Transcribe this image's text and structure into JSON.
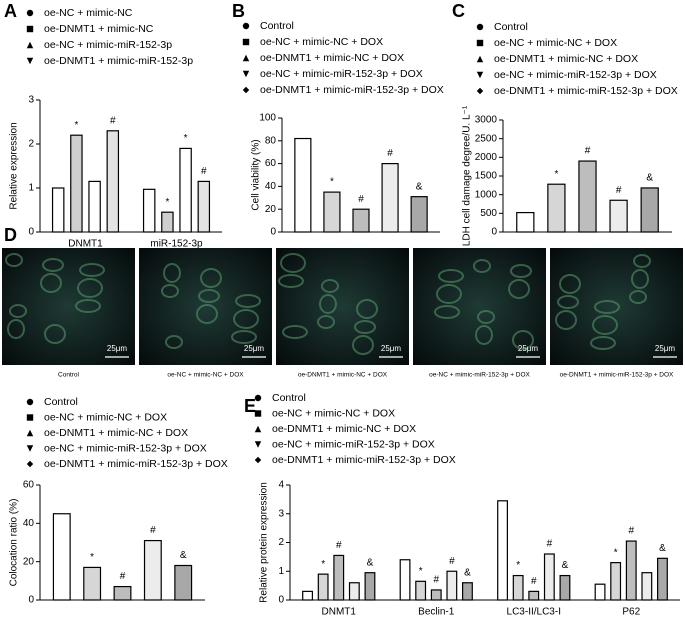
{
  "chart_data": [
    {
      "type": "bar",
      "panel": "A",
      "ylabel": "Relative expression",
      "categories": [
        "DNMT1",
        "miR-152-3p"
      ],
      "ylim": [
        0,
        3
      ],
      "yticks": [
        0,
        1,
        2,
        3
      ],
      "series": [
        {
          "name": "oe-NC + mimic-NC",
          "color": "#ffffff",
          "values": [
            1.0,
            0.97
          ],
          "sig": [
            null,
            null
          ]
        },
        {
          "name": "oe-DNMT1 + mimic-NC",
          "color": "#cfcfcf",
          "values": [
            2.2,
            0.45
          ],
          "sig": [
            "*",
            "*"
          ]
        },
        {
          "name": "oe-NC + mimic-miR-152-3p",
          "color": "#ffffff",
          "values": [
            1.15,
            1.9
          ],
          "sig": [
            null,
            "*"
          ]
        },
        {
          "name": "oe-DNMT1 + mimic-miR-152-3p",
          "color": "#e3e3e3",
          "values": [
            2.3,
            1.15
          ],
          "sig": [
            "#",
            "#"
          ]
        }
      ]
    },
    {
      "type": "bar",
      "panel": "B",
      "ylabel": "Cell viability (%)",
      "categories": [
        null
      ],
      "ylim": [
        0,
        100
      ],
      "yticks": [
        0,
        20,
        40,
        60,
        80,
        100
      ],
      "series": [
        {
          "name": "Control",
          "color": "#ffffff",
          "values": [
            82
          ],
          "sig": [
            null
          ]
        },
        {
          "name": "oe-NC + mimic-NC + DOX",
          "color": "#d6d6d6",
          "values": [
            35
          ],
          "sig": [
            "*"
          ]
        },
        {
          "name": "oe-DNMT1 + mimic-NC + DOX",
          "color": "#bdbdbd",
          "values": [
            20
          ],
          "sig": [
            "#"
          ]
        },
        {
          "name": "oe-NC + mimic-miR-152-3p + DOX",
          "color": "#ececec",
          "values": [
            60
          ],
          "sig": [
            "#"
          ]
        },
        {
          "name": "oe-DNMT1 + mimic-miR-152-3p + DOX",
          "color": "#a8a8a8",
          "values": [
            31
          ],
          "sig": [
            "&"
          ]
        }
      ]
    },
    {
      "type": "bar",
      "panel": "C",
      "ylabel": "LDH cell damage degree/U. L⁻¹",
      "categories": [
        null
      ],
      "ylim": [
        0,
        3000
      ],
      "yticks": [
        0,
        500,
        1000,
        1500,
        2000,
        2500,
        3000
      ],
      "series": [
        {
          "name": "Control",
          "color": "#ffffff",
          "values": [
            520
          ],
          "sig": [
            null
          ]
        },
        {
          "name": "oe-NC + mimic-NC + DOX",
          "color": "#d6d6d6",
          "values": [
            1280
          ],
          "sig": [
            "*"
          ]
        },
        {
          "name": "oe-DNMT1 + mimic-NC + DOX",
          "color": "#bdbdbd",
          "values": [
            1900
          ],
          "sig": [
            "#"
          ]
        },
        {
          "name": "oe-NC + mimic-miR-152-3p + DOX",
          "color": "#ececec",
          "values": [
            850
          ],
          "sig": [
            "#"
          ]
        },
        {
          "name": "oe-DNMT1 + mimic-miR-152-3p + DOX",
          "color": "#a8a8a8",
          "values": [
            1180
          ],
          "sig": [
            "&"
          ]
        }
      ]
    },
    {
      "type": "bar",
      "ylabel": "Colocation ratio (%)",
      "categories": [
        null
      ],
      "ylim": [
        0,
        60
      ],
      "yticks": [
        0,
        20,
        40,
        60
      ],
      "series": [
        {
          "name": "Control",
          "color": "#ffffff",
          "values": [
            45
          ],
          "sig": [
            null
          ]
        },
        {
          "name": "oe-NC + mimic-NC + DOX",
          "color": "#d6d6d6",
          "values": [
            17
          ],
          "sig": [
            "*"
          ]
        },
        {
          "name": "oe-DNMT1 + mimic-NC + DOX",
          "color": "#bdbdbd",
          "values": [
            7
          ],
          "sig": [
            "#"
          ]
        },
        {
          "name": "oe-NC + mimic-miR-152-3p + DOX",
          "color": "#ececec",
          "values": [
            31
          ],
          "sig": [
            "#"
          ]
        },
        {
          "name": "oe-DNMT1 + mimic-miR-152-3p + DOX",
          "color": "#a8a8a8",
          "values": [
            18
          ],
          "sig": [
            "&"
          ]
        }
      ]
    },
    {
      "type": "bar",
      "panel": "E",
      "ylabel": "Relative protein expression",
      "categories": [
        "DNMT1",
        "Beclin-1",
        "LC3-II/LC3-I",
        "P62"
      ],
      "ylim": [
        0,
        4
      ],
      "yticks": [
        0,
        1,
        2,
        3,
        4
      ],
      "series": [
        {
          "name": "Control",
          "color": "#ffffff",
          "values": [
            0.3,
            1.4,
            3.45,
            0.55
          ],
          "sig": [
            null,
            null,
            null,
            null
          ]
        },
        {
          "name": "oe-NC + mimic-NC + DOX",
          "color": "#d6d6d6",
          "values": [
            0.9,
            0.65,
            0.85,
            1.3
          ],
          "sig": [
            "*",
            "*",
            "*",
            "*"
          ]
        },
        {
          "name": "oe-DNMT1 + mimic-NC + DOX",
          "color": "#bdbdbd",
          "values": [
            1.55,
            0.35,
            0.3,
            2.05
          ],
          "sig": [
            "#",
            "#",
            "#",
            "#"
          ]
        },
        {
          "name": "oe-NC + mimic-miR-152-3p + DOX",
          "color": "#ececec",
          "values": [
            0.6,
            1.0,
            1.6,
            0.95
          ],
          "sig": [
            null,
            "#",
            "#",
            null
          ]
        },
        {
          "name": "oe-DNMT1 + mimic-miR-152-3p + DOX",
          "color": "#a8a8a8",
          "values": [
            0.95,
            0.6,
            0.85,
            1.45
          ],
          "sig": [
            "&",
            "&",
            "&",
            "&"
          ]
        }
      ]
    }
  ],
  "micrographs": {
    "panel": "D",
    "scale_bar": "25μm",
    "captions": [
      "Control",
      "oe-NC + mimic-NC + DOX",
      "oe-DNMT1 + mimic-NC + DOX",
      "oe-NC + mimic-miR-152-3p + DOX",
      "oe-DNMT1 + mimic-miR-152-3p + DOX"
    ]
  }
}
